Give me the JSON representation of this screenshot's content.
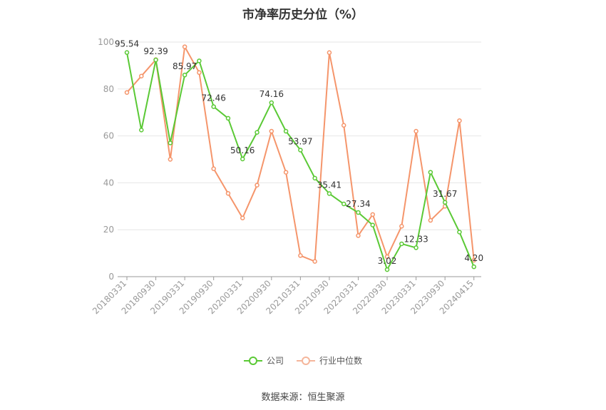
{
  "chart_data": {
    "type": "line",
    "title": "市净率历史分位（%）",
    "source": "数据来源：恒生聚源",
    "ylim": [
      0,
      100
    ],
    "yticks": [
      0,
      20,
      40,
      60,
      80,
      100
    ],
    "x_tick_labels": [
      "20180331",
      "20180930",
      "20190331",
      "20190930",
      "20200331",
      "20200930",
      "20210331",
      "20210930",
      "20220331",
      "20220930",
      "20230331",
      "20230930",
      "20240415"
    ],
    "x_tick_positions": [
      0,
      2,
      4,
      6,
      8,
      10,
      12,
      14,
      16,
      18,
      20,
      22,
      24
    ],
    "grid": true,
    "legend_position": "bottom",
    "series": [
      {
        "name": "公司",
        "color": "#5ac935",
        "values": [
          95.54,
          62.5,
          92.39,
          57.0,
          85.97,
          92.0,
          72.46,
          67.5,
          50.16,
          61.5,
          74.16,
          62.0,
          53.97,
          42.0,
          35.41,
          31.0,
          27.34,
          22.0,
          3.02,
          14.0,
          12.33,
          44.5,
          31.67,
          19.0,
          4.2
        ],
        "data_labels": [
          {
            "index": 0,
            "text": "95.54"
          },
          {
            "index": 2,
            "text": "92.39"
          },
          {
            "index": 4,
            "text": "85.97"
          },
          {
            "index": 6,
            "text": "72.46"
          },
          {
            "index": 8,
            "text": "50.16"
          },
          {
            "index": 10,
            "text": "74.16"
          },
          {
            "index": 12,
            "text": "53.97"
          },
          {
            "index": 14,
            "text": "35.41"
          },
          {
            "index": 16,
            "text": "27.34"
          },
          {
            "index": 18,
            "text": "3.02"
          },
          {
            "index": 20,
            "text": "12.33"
          },
          {
            "index": 22,
            "text": "31.67"
          },
          {
            "index": 24,
            "text": "4.20"
          }
        ]
      },
      {
        "name": "行业中位数",
        "color": "#f5956b",
        "values": [
          78.5,
          85.5,
          92.5,
          50.0,
          98.0,
          87.0,
          46.0,
          35.5,
          25.0,
          39.0,
          62.0,
          44.5,
          9.0,
          6.5,
          95.5,
          64.5,
          17.5,
          26.5,
          8.5,
          21.5,
          62.0,
          24.0,
          30.0,
          66.5,
          7.0
        ]
      }
    ]
  }
}
